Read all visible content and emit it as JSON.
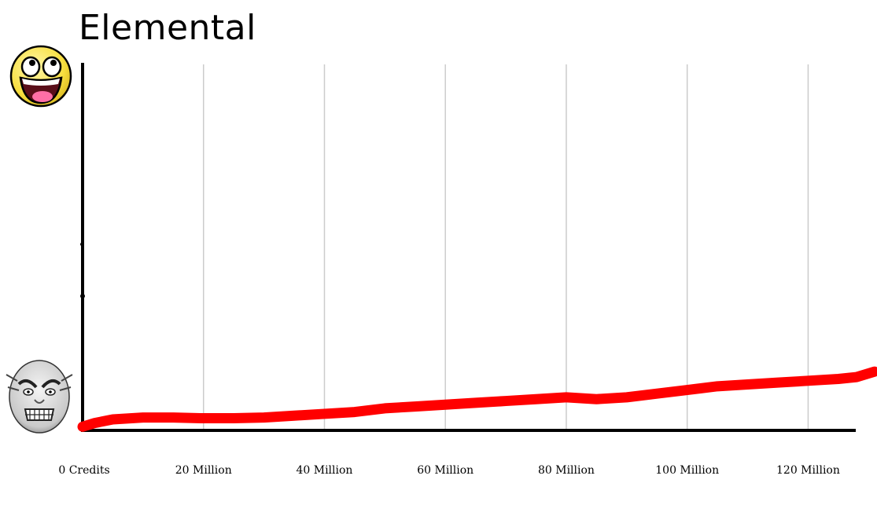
{
  "chart_data": {
    "type": "line",
    "title": "Elemental",
    "xlabel": "",
    "ylabel": "",
    "grid": true,
    "x_tick_labels": [
      "0 Credits",
      "20 Million",
      "40 Million",
      "60 Million",
      "80 Million",
      "100 Million",
      "120 Million"
    ],
    "x_ticks": [
      0,
      20,
      40,
      60,
      80,
      100,
      120
    ],
    "xlim": [
      0,
      131
    ],
    "ylim": [
      0,
      1
    ],
    "y_axis_icons": {
      "top": "awesome-face-icon",
      "bottom": "rage-face-icon"
    },
    "series": [
      {
        "color": "#ff0000",
        "x": [
          0,
          2,
          5,
          10,
          15,
          20,
          25,
          30,
          35,
          40,
          45,
          50,
          55,
          60,
          65,
          70,
          75,
          80,
          85,
          90,
          95,
          100,
          105,
          110,
          115,
          120,
          125,
          128,
          131
        ],
        "y": [
          0.01,
          0.02,
          0.03,
          0.035,
          0.035,
          0.033,
          0.033,
          0.035,
          0.04,
          0.045,
          0.05,
          0.06,
          0.065,
          0.07,
          0.075,
          0.08,
          0.085,
          0.09,
          0.085,
          0.09,
          0.1,
          0.11,
          0.12,
          0.125,
          0.13,
          0.135,
          0.14,
          0.145,
          0.16
        ]
      }
    ],
    "colors": {
      "axis": "#000000",
      "grid": "#cccccc",
      "line": "#ff0000"
    }
  }
}
